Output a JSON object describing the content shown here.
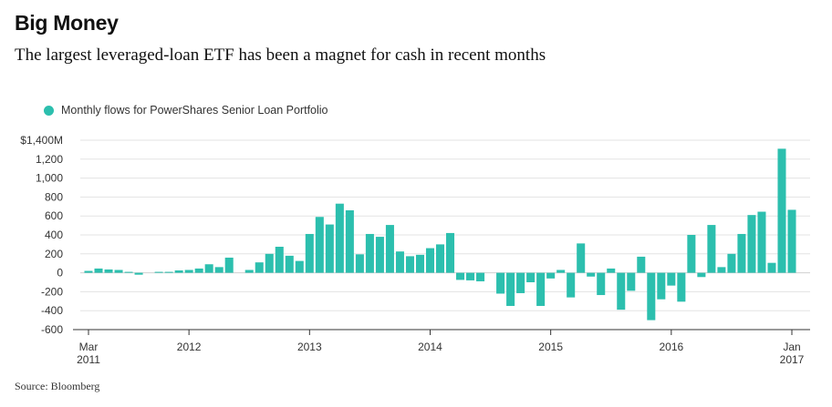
{
  "title": "Big Money",
  "subtitle": "The largest leveraged-loan ETF has been a magnet for cash in recent months",
  "source": "Source: Bloomberg",
  "colors": {
    "bar": "#2cbfae",
    "grid": "#e3e3e3",
    "axis": "#333333"
  },
  "chart_data": {
    "type": "bar",
    "title": "Big Money",
    "legend": [
      "Monthly flows for PowerShares Senior Loan Portfolio"
    ],
    "legend_position": "top-left",
    "ylabel": "",
    "xlabel": "",
    "ylim": [
      -600,
      1400
    ],
    "y_ticks": [
      1400,
      1200,
      1000,
      800,
      600,
      400,
      200,
      0,
      -200,
      -400,
      -600
    ],
    "y_tick_labels": [
      "$1,400M",
      "1,200",
      "1,000",
      "800",
      "600",
      "400",
      "200",
      "0",
      "-200",
      "-400",
      "-600"
    ],
    "x_ticks": [
      {
        "index": 0,
        "lines": [
          "Mar",
          "2011"
        ]
      },
      {
        "index": 10,
        "lines": [
          "2012"
        ]
      },
      {
        "index": 22,
        "lines": [
          "2013"
        ]
      },
      {
        "index": 34,
        "lines": [
          "2014"
        ]
      },
      {
        "index": 46,
        "lines": [
          "2015"
        ]
      },
      {
        "index": 58,
        "lines": [
          "2016"
        ]
      },
      {
        "index": 70,
        "lines": [
          "Jan",
          "2017"
        ]
      }
    ],
    "series": [
      {
        "name": "Monthly flows for PowerShares Senior Loan Portfolio",
        "categories": [
          "Mar 2011",
          "Apr 2011",
          "May 2011",
          "Jun 2011",
          "Jul 2011",
          "Aug 2011",
          "Sep 2011",
          "Oct 2011",
          "Nov 2011",
          "Dec 2011",
          "Jan 2012",
          "Feb 2012",
          "Mar 2012",
          "Apr 2012",
          "May 2012",
          "Jun 2012",
          "Jul 2012",
          "Aug 2012",
          "Sep 2012",
          "Oct 2012",
          "Nov 2012",
          "Dec 2012",
          "Jan 2013",
          "Feb 2013",
          "Mar 2013",
          "Apr 2013",
          "May 2013",
          "Jun 2013",
          "Jul 2013",
          "Aug 2013",
          "Sep 2013",
          "Oct 2013",
          "Nov 2013",
          "Dec 2013",
          "Jan 2014",
          "Feb 2014",
          "Mar 2014",
          "Apr 2014",
          "May 2014",
          "Jun 2014",
          "Jul 2014",
          "Aug 2014",
          "Sep 2014",
          "Oct 2014",
          "Nov 2014",
          "Dec 2014",
          "Jan 2015",
          "Feb 2015",
          "Mar 2015",
          "Apr 2015",
          "May 2015",
          "Jun 2015",
          "Jul 2015",
          "Aug 2015",
          "Sep 2015",
          "Oct 2015",
          "Nov 2015",
          "Dec 2015",
          "Jan 2016",
          "Feb 2016",
          "Mar 2016",
          "Apr 2016",
          "May 2016",
          "Jun 2016",
          "Jul 2016",
          "Aug 2016",
          "Sep 2016",
          "Oct 2016",
          "Nov 2016",
          "Dec 2016",
          "Jan 2017"
        ],
        "values": [
          20,
          45,
          35,
          30,
          10,
          -20,
          0,
          10,
          10,
          25,
          30,
          45,
          90,
          60,
          160,
          0,
          30,
          110,
          200,
          275,
          180,
          125,
          410,
          590,
          510,
          730,
          660,
          195,
          410,
          380,
          505,
          225,
          175,
          190,
          260,
          300,
          420,
          -75,
          -80,
          -90,
          0,
          -220,
          -350,
          -215,
          -100,
          -350,
          -60,
          30,
          -260,
          310,
          -40,
          -235,
          45,
          -390,
          -190,
          170,
          -500,
          -280,
          -135,
          -305,
          400,
          -45,
          505,
          60,
          200,
          410,
          610,
          645,
          105,
          1310,
          665
        ]
      }
    ]
  }
}
